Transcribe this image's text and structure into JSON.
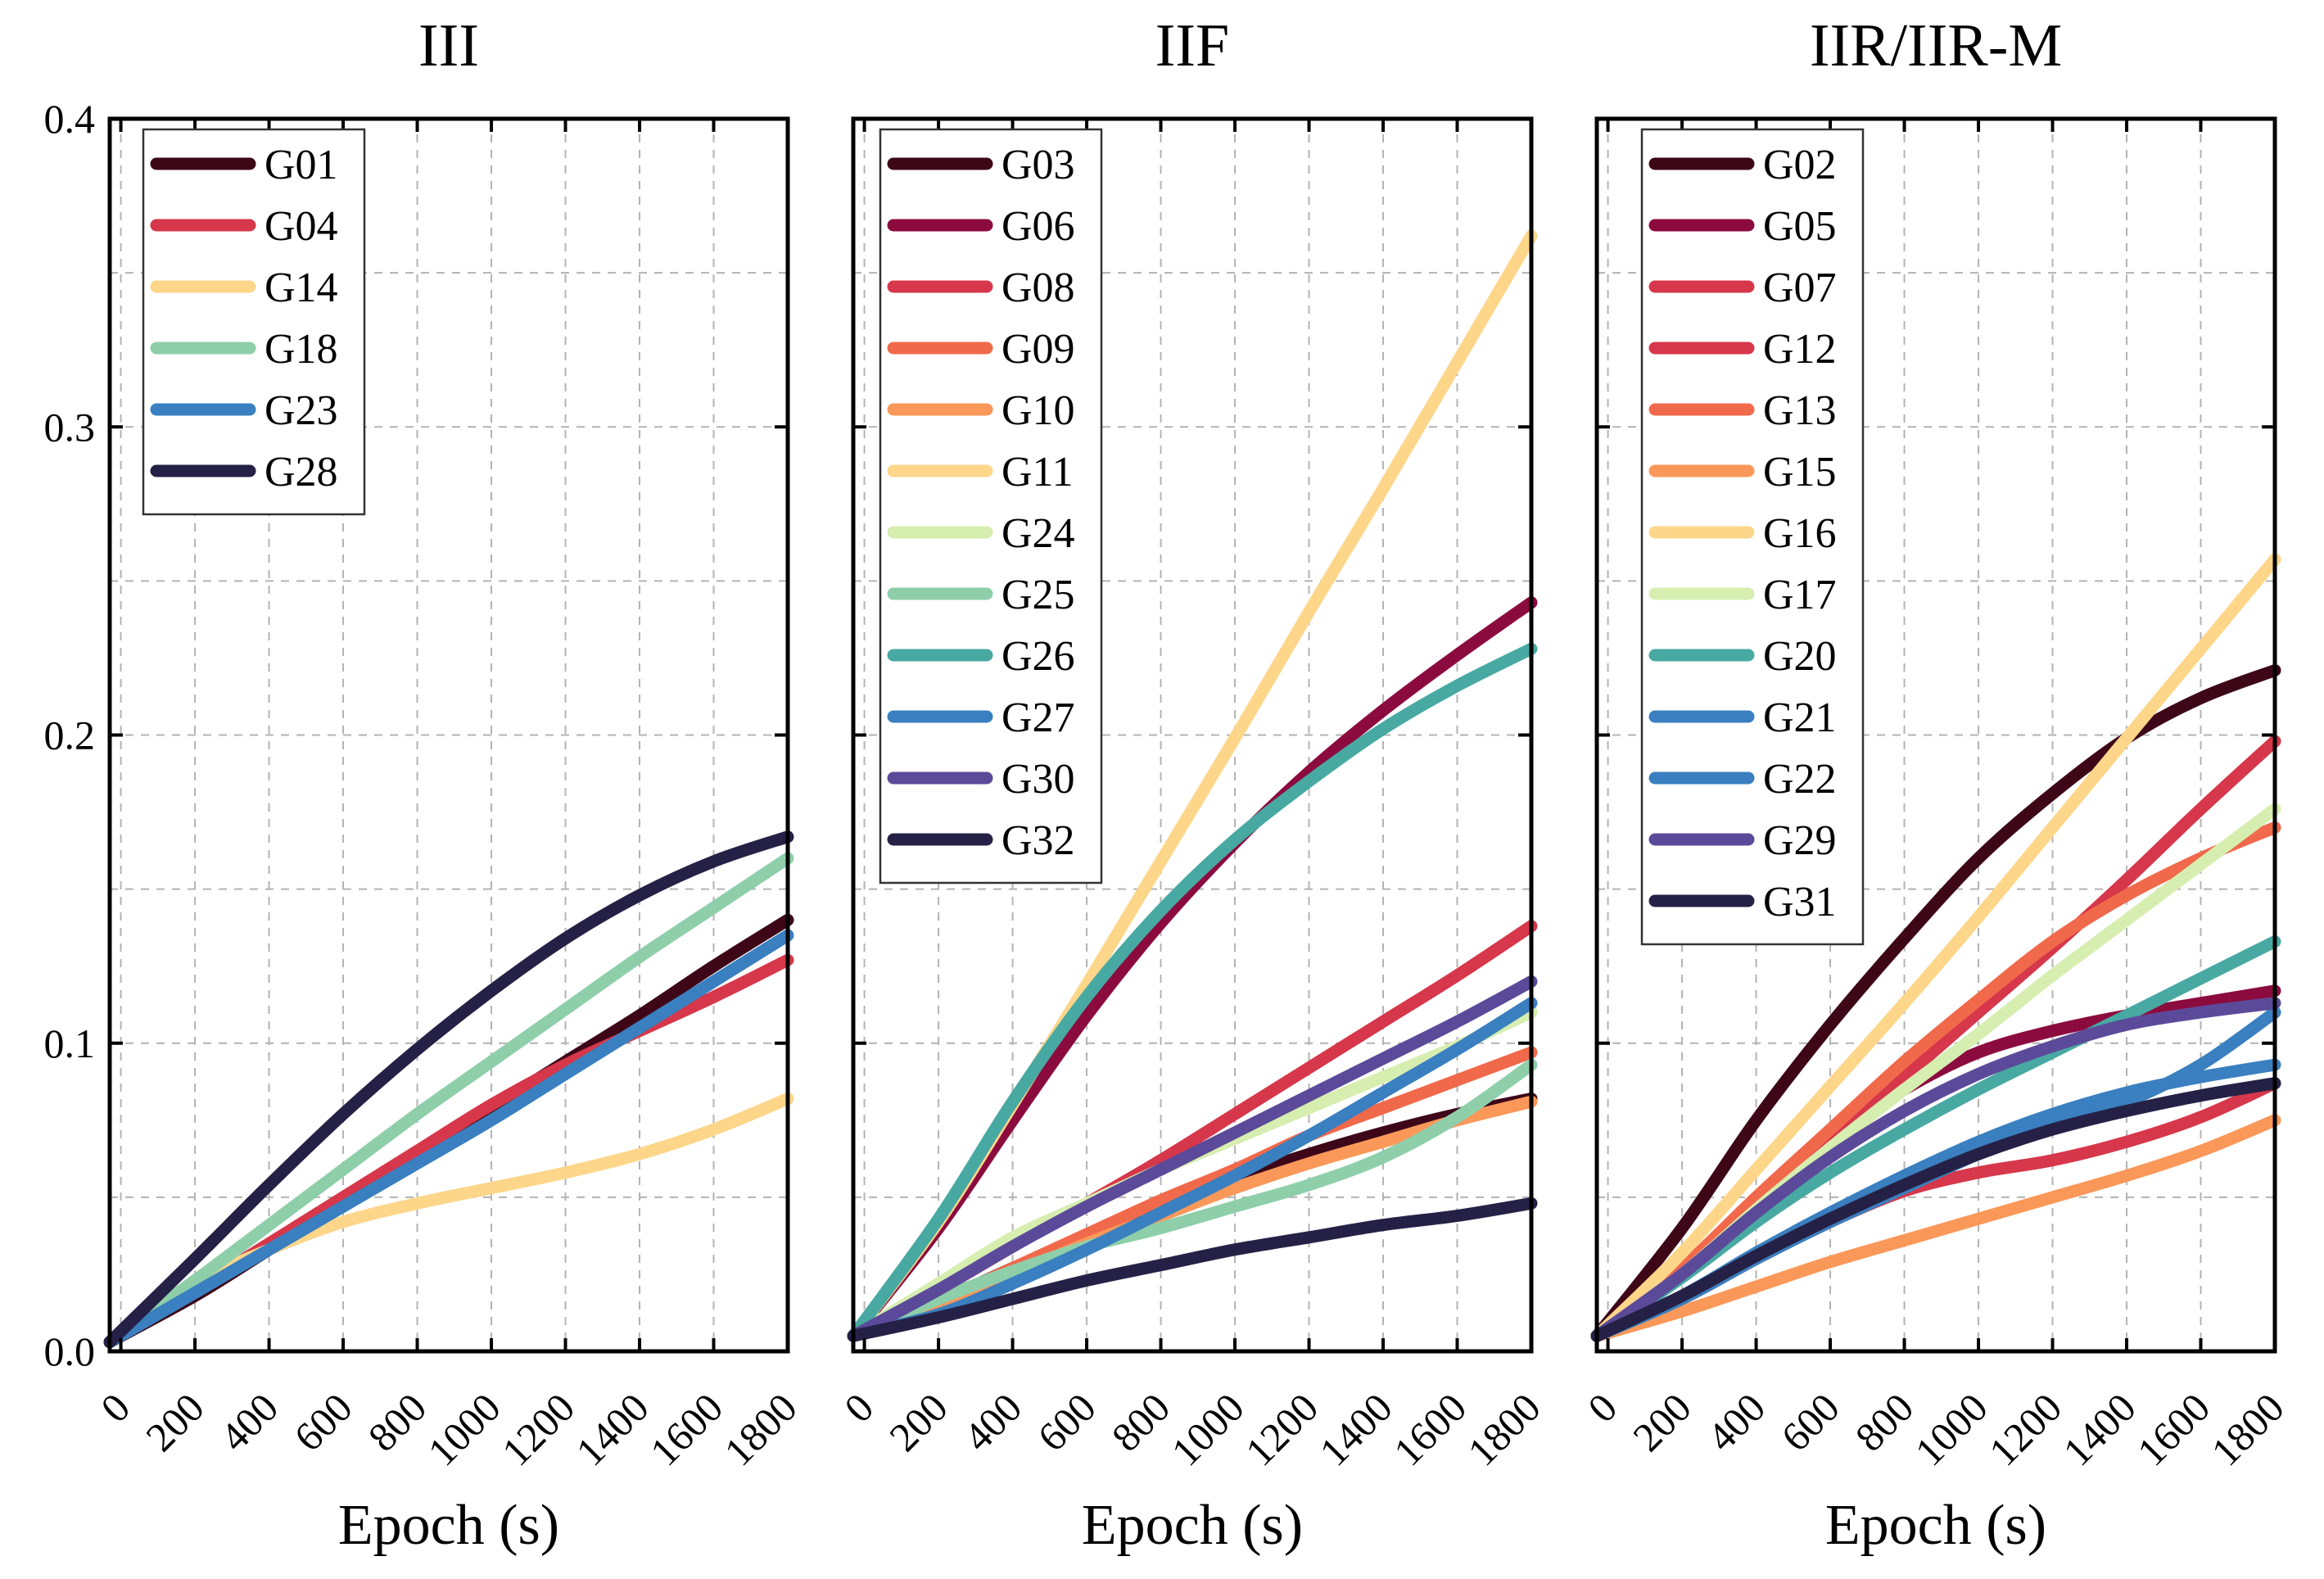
{
  "chart_data": [
    {
      "type": "line",
      "title": "III",
      "xlabel": "Epoch (s)",
      "ylabel": "",
      "xlim": [
        -30,
        1800
      ],
      "ylim": [
        0,
        0.4
      ],
      "x_ticks": [
        "0",
        "200",
        "400",
        "600",
        "800",
        "1000",
        "1200",
        "1400",
        "1600",
        "1800"
      ],
      "y_ticks": [
        "0.0",
        "0.1",
        "0.2",
        "0.3",
        "0.4"
      ],
      "grid": true,
      "legend_position": "top-left",
      "x": [
        -30,
        200,
        400,
        600,
        800,
        1000,
        1200,
        1400,
        1600,
        1800
      ],
      "series": [
        {
          "name": "G01",
          "color": "#3d0718",
          "values": [
            0.003,
            0.018,
            0.033,
            0.048,
            0.064,
            0.079,
            0.094,
            0.109,
            0.125,
            0.14
          ]
        },
        {
          "name": "G04",
          "color": "#d6374a",
          "values": [
            0.003,
            0.02,
            0.035,
            0.05,
            0.065,
            0.08,
            0.093,
            0.104,
            0.115,
            0.127
          ]
        },
        {
          "name": "G14",
          "color": "#fdd68a",
          "values": [
            0.003,
            0.022,
            0.033,
            0.042,
            0.048,
            0.053,
            0.058,
            0.064,
            0.072,
            0.082
          ]
        },
        {
          "name": "G18",
          "color": "#8ecfaa",
          "values": [
            0.003,
            0.023,
            0.041,
            0.059,
            0.077,
            0.094,
            0.111,
            0.128,
            0.144,
            0.16
          ]
        },
        {
          "name": "G23",
          "color": "#3a7fbf",
          "values": [
            0.003,
            0.019,
            0.033,
            0.047,
            0.061,
            0.075,
            0.09,
            0.105,
            0.12,
            0.135
          ]
        },
        {
          "name": "G28",
          "color": "#252146",
          "values": [
            0.003,
            0.03,
            0.054,
            0.077,
            0.098,
            0.117,
            0.134,
            0.148,
            0.159,
            0.167
          ]
        }
      ]
    },
    {
      "type": "line",
      "title": "IIF",
      "xlabel": "Epoch (s)",
      "ylabel": "",
      "xlim": [
        -30,
        1800
      ],
      "ylim": [
        0,
        0.4
      ],
      "x_ticks": [
        "0",
        "200",
        "400",
        "600",
        "800",
        "1000",
        "1200",
        "1400",
        "1600",
        "1800"
      ],
      "y_ticks": [
        "0.0",
        "0.1",
        "0.2",
        "0.3",
        "0.4"
      ],
      "grid": true,
      "legend_position": "top-left",
      "x": [
        -30,
        200,
        400,
        600,
        800,
        1000,
        1200,
        1400,
        1600,
        1800
      ],
      "series": [
        {
          "name": "G03",
          "color": "#3d0718",
          "values": [
            0.005,
            0.016,
            0.027,
            0.037,
            0.047,
            0.056,
            0.064,
            0.071,
            0.077,
            0.082
          ]
        },
        {
          "name": "G06",
          "color": "#8c0b3f",
          "values": [
            0.005,
            0.04,
            0.075,
            0.109,
            0.139,
            0.165,
            0.188,
            0.208,
            0.226,
            0.243
          ]
        },
        {
          "name": "G08",
          "color": "#d6374a",
          "values": [
            0.005,
            0.02,
            0.034,
            0.048,
            0.062,
            0.077,
            0.092,
            0.107,
            0.122,
            0.138
          ]
        },
        {
          "name": "G09",
          "color": "#f1694b",
          "values": [
            0.005,
            0.016,
            0.027,
            0.038,
            0.049,
            0.059,
            0.07,
            0.079,
            0.088,
            0.097
          ]
        },
        {
          "name": "G10",
          "color": "#fa9859",
          "values": [
            0.005,
            0.015,
            0.025,
            0.035,
            0.044,
            0.053,
            0.061,
            0.068,
            0.075,
            0.081
          ]
        },
        {
          "name": "G11",
          "color": "#fdd68a",
          "values": [
            0.005,
            0.042,
            0.08,
            0.119,
            0.159,
            0.199,
            0.24,
            0.28,
            0.321,
            0.362
          ]
        },
        {
          "name": "G24",
          "color": "#d6eeb0",
          "values": [
            0.005,
            0.022,
            0.037,
            0.048,
            0.059,
            0.069,
            0.079,
            0.089,
            0.099,
            0.11
          ]
        },
        {
          "name": "G25",
          "color": "#8ecfaa",
          "values": [
            0.005,
            0.017,
            0.026,
            0.034,
            0.04,
            0.047,
            0.054,
            0.063,
            0.076,
            0.093
          ]
        },
        {
          "name": "G26",
          "color": "#48a9a3",
          "values": [
            0.005,
            0.043,
            0.081,
            0.115,
            0.143,
            0.166,
            0.185,
            0.202,
            0.216,
            0.228
          ]
        },
        {
          "name": "G27",
          "color": "#3a7fbf",
          "values": [
            0.005,
            0.012,
            0.022,
            0.033,
            0.045,
            0.057,
            0.07,
            0.084,
            0.098,
            0.113
          ]
        },
        {
          "name": "G30",
          "color": "#5b4a99",
          "values": [
            0.005,
            0.02,
            0.034,
            0.047,
            0.059,
            0.071,
            0.083,
            0.095,
            0.107,
            0.12
          ]
        },
        {
          "name": "G32",
          "color": "#252146",
          "values": [
            0.005,
            0.011,
            0.017,
            0.023,
            0.028,
            0.033,
            0.037,
            0.041,
            0.044,
            0.048
          ]
        }
      ]
    },
    {
      "type": "line",
      "title": "IIR/IIR-M",
      "xlabel": "Epoch (s)",
      "ylabel": "",
      "xlim": [
        -30,
        1800
      ],
      "ylim": [
        0,
        0.4
      ],
      "x_ticks": [
        "0",
        "200",
        "400",
        "600",
        "800",
        "1000",
        "1200",
        "1400",
        "1600",
        "1800"
      ],
      "y_ticks": [
        "0.0",
        "0.1",
        "0.2",
        "0.3",
        "0.4"
      ],
      "grid": true,
      "legend_position": "top-left",
      "x": [
        -30,
        200,
        400,
        600,
        800,
        1000,
        1200,
        1400,
        1600,
        1800
      ],
      "series": [
        {
          "name": "G02",
          "color": "#3d0718",
          "values": [
            0.005,
            0.04,
            0.075,
            0.106,
            0.134,
            0.16,
            0.181,
            0.199,
            0.212,
            0.221
          ]
        },
        {
          "name": "G05",
          "color": "#8c0b3f",
          "values": [
            0.005,
            0.027,
            0.049,
            0.069,
            0.085,
            0.097,
            0.104,
            0.109,
            0.113,
            0.117
          ]
        },
        {
          "name": "G07",
          "color": "#d6374a",
          "values": [
            0.005,
            0.017,
            0.03,
            0.042,
            0.052,
            0.058,
            0.062,
            0.068,
            0.076,
            0.087
          ]
        },
        {
          "name": "G12",
          "color": "#d6374a",
          "values": [
            0.005,
            0.026,
            0.047,
            0.068,
            0.089,
            0.11,
            0.131,
            0.153,
            0.176,
            0.198
          ]
        },
        {
          "name": "G13",
          "color": "#f1694b",
          "values": [
            0.005,
            0.027,
            0.05,
            0.072,
            0.094,
            0.114,
            0.133,
            0.148,
            0.16,
            0.17
          ]
        },
        {
          "name": "G15",
          "color": "#fa9859",
          "values": [
            0.005,
            0.013,
            0.021,
            0.029,
            0.036,
            0.043,
            0.05,
            0.057,
            0.065,
            0.075
          ]
        },
        {
          "name": "G16",
          "color": "#fdd68a",
          "values": [
            0.005,
            0.032,
            0.059,
            0.086,
            0.113,
            0.141,
            0.17,
            0.199,
            0.228,
            0.257
          ]
        },
        {
          "name": "G17",
          "color": "#d6eeb0",
          "values": [
            0.005,
            0.025,
            0.046,
            0.066,
            0.085,
            0.103,
            0.122,
            0.14,
            0.158,
            0.176
          ]
        },
        {
          "name": "G20",
          "color": "#48a9a3",
          "values": [
            0.005,
            0.024,
            0.042,
            0.058,
            0.072,
            0.085,
            0.097,
            0.109,
            0.121,
            0.133
          ]
        },
        {
          "name": "G21",
          "color": "#3a7fbf",
          "values": [
            0.005,
            0.017,
            0.03,
            0.042,
            0.053,
            0.064,
            0.073,
            0.081,
            0.093,
            0.11
          ]
        },
        {
          "name": "G22",
          "color": "#3a7fbf",
          "values": [
            0.005,
            0.018,
            0.032,
            0.045,
            0.057,
            0.068,
            0.077,
            0.084,
            0.089,
            0.093
          ]
        },
        {
          "name": "G29",
          "color": "#5b4a99",
          "values": [
            0.005,
            0.025,
            0.045,
            0.063,
            0.078,
            0.09,
            0.099,
            0.106,
            0.11,
            0.113
          ]
        },
        {
          "name": "G31",
          "color": "#252146",
          "values": [
            0.005,
            0.018,
            0.031,
            0.043,
            0.054,
            0.064,
            0.072,
            0.078,
            0.083,
            0.087
          ]
        }
      ]
    }
  ]
}
